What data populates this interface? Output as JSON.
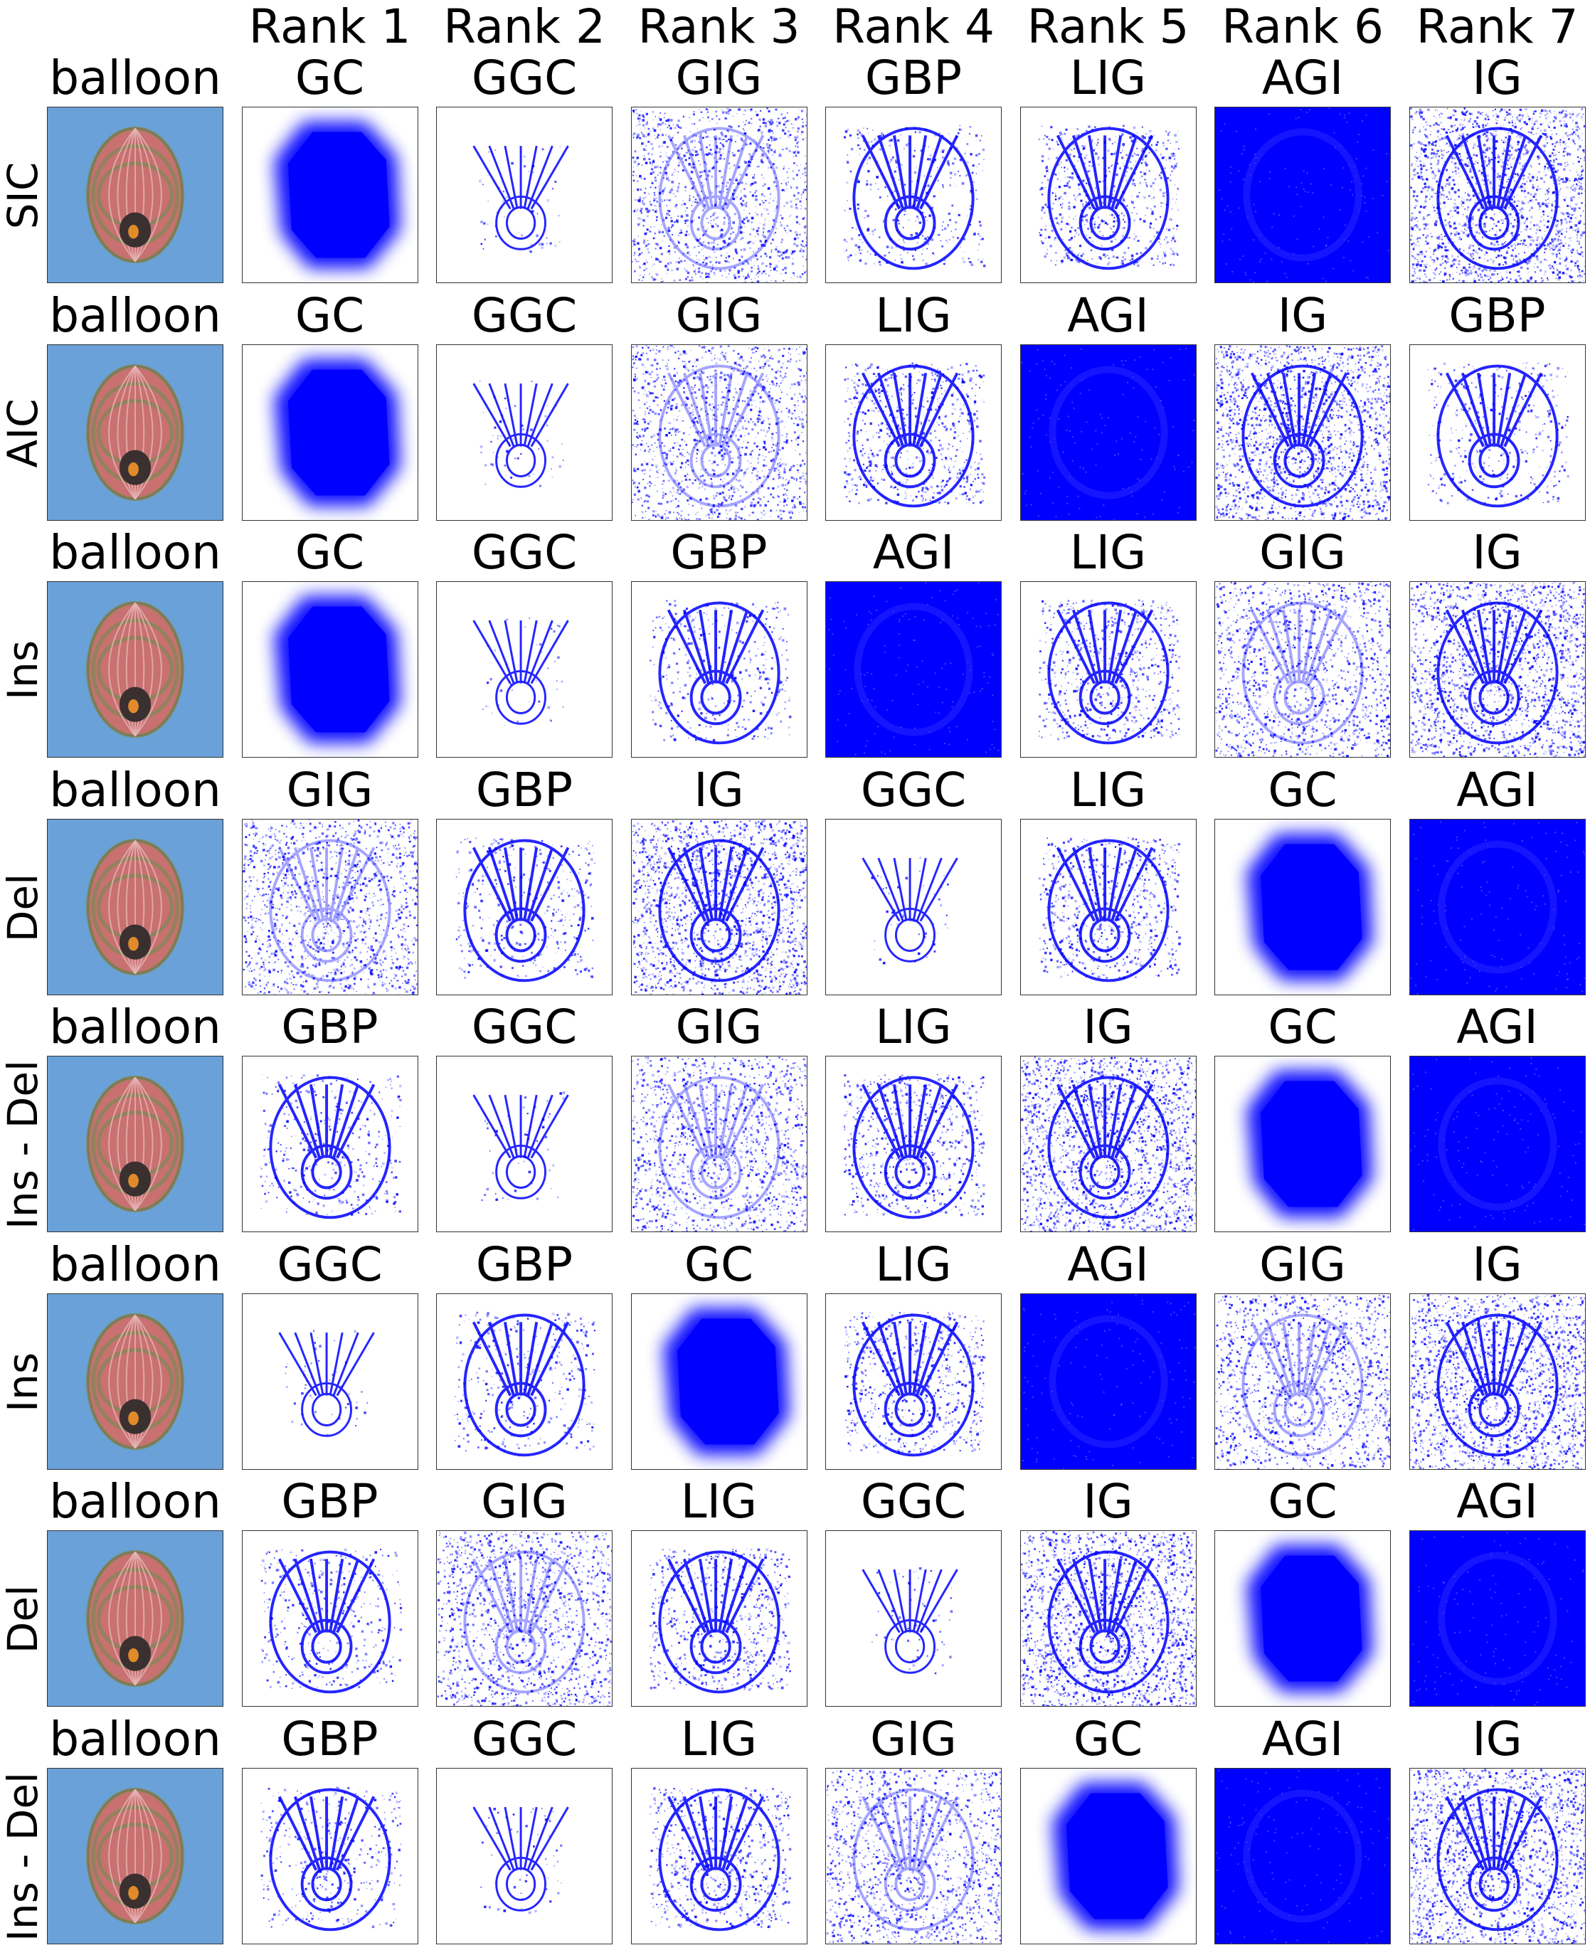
{
  "colors": {
    "heat": "#0000ff",
    "sky": "#6aa1d8",
    "balloon_body": "#c97070",
    "balloon_band": "#7a8a55"
  },
  "ranks": [
    "Rank 1",
    "Rank 2",
    "Rank 3",
    "Rank 4",
    "Rank 5",
    "Rank 6",
    "Rank 7"
  ],
  "rows": [
    {
      "metric": "SIC",
      "image_label": "balloon",
      "methods": [
        "GC",
        "GGC",
        "GIG",
        "GBP",
        "LIG",
        "AGI",
        "IG"
      ]
    },
    {
      "metric": "AIC",
      "image_label": "balloon",
      "methods": [
        "GC",
        "GGC",
        "GIG",
        "LIG",
        "AGI",
        "IG",
        "GBP"
      ]
    },
    {
      "metric": "Ins",
      "image_label": "balloon",
      "methods": [
        "GC",
        "GGC",
        "GBP",
        "AGI",
        "LIG",
        "GIG",
        "IG"
      ]
    },
    {
      "metric": "Del",
      "image_label": "balloon",
      "methods": [
        "GIG",
        "GBP",
        "IG",
        "GGC",
        "LIG",
        "GC",
        "AGI"
      ]
    },
    {
      "metric": "Ins - Del",
      "image_label": "balloon",
      "methods": [
        "GBP",
        "GGC",
        "GIG",
        "LIG",
        "IG",
        "GC",
        "AGI"
      ]
    },
    {
      "metric": "Ins",
      "image_label": "balloon",
      "methods": [
        "GGC",
        "GBP",
        "GC",
        "LIG",
        "AGI",
        "GIG",
        "IG"
      ]
    },
    {
      "metric": "Del",
      "image_label": "balloon",
      "methods": [
        "GBP",
        "GIG",
        "LIG",
        "GGC",
        "IG",
        "GC",
        "AGI"
      ]
    },
    {
      "metric": "Ins - Del",
      "image_label": "balloon",
      "methods": [
        "GBP",
        "GGC",
        "LIG",
        "GIG",
        "GC",
        "AGI",
        "IG"
      ]
    }
  ]
}
